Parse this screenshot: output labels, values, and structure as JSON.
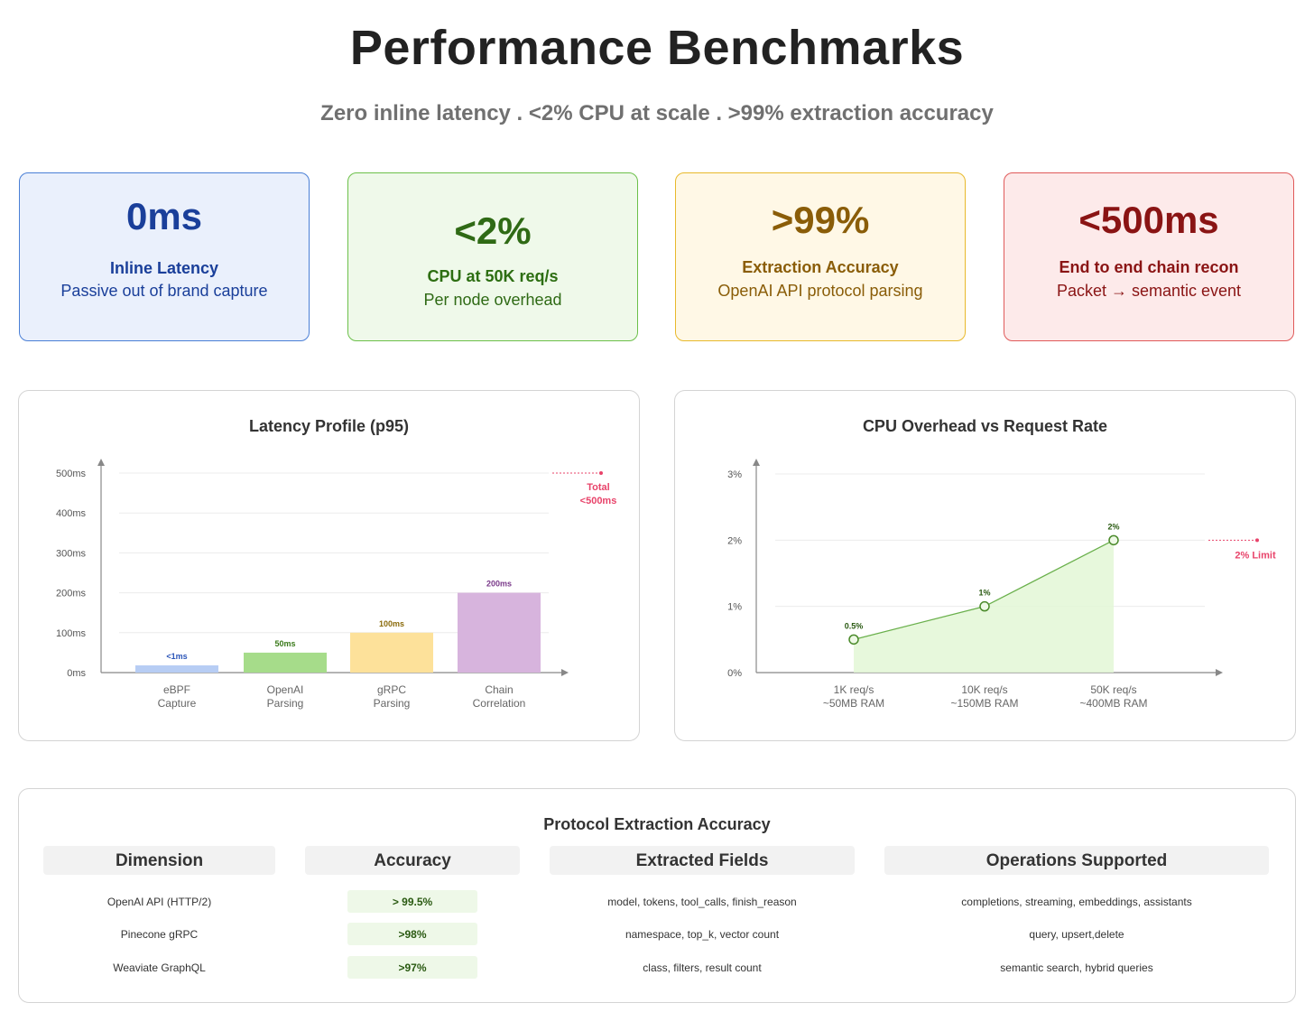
{
  "header": {
    "title": "Performance Benchmarks",
    "subtitle": "Zero inline latency . <2% CPU at scale . >99% extraction accuracy"
  },
  "kpis": [
    {
      "value": "0ms",
      "label": "Inline Latency",
      "desc": "Passive out of brand capture"
    },
    {
      "value": "<2%",
      "label": "CPU at 50K req/s",
      "desc": "Per node overhead"
    },
    {
      "value": ">99%",
      "label": "Extraction Accuracy",
      "desc": "OpenAI API protocol parsing"
    },
    {
      "value": "<500ms",
      "label": "End to end chain recon",
      "desc": "Packet → semantic event"
    }
  ],
  "chart_data": [
    {
      "type": "bar",
      "title": "Latency Profile (p95)",
      "categories": [
        "eBPF\nCapture",
        "OpenAI\nParsing",
        "gRPC\nParsing",
        "Chain\nCorrelation"
      ],
      "values": [
        1,
        50,
        100,
        200
      ],
      "data_labels": [
        "<1ms",
        "50ms",
        "100ms",
        "200ms"
      ],
      "colors": [
        "#b7cdf4",
        "#a6dc8a",
        "#fde19a",
        "#d7b4dd"
      ],
      "label_colors": [
        "#2b55b8",
        "#3a7a1a",
        "#8a6a0a",
        "#7a3a8a"
      ],
      "y_ticks": [
        "0ms",
        "100ms",
        "200ms",
        "300ms",
        "400ms",
        "500ms"
      ],
      "ylim": [
        0,
        500
      ],
      "annotation": {
        "text_line1": "Total",
        "text_line2": "<500ms",
        "value": 500,
        "color": "#e8436a"
      },
      "grid": true
    },
    {
      "type": "line",
      "title": "CPU Overhead vs Request Rate",
      "x": [
        "1K req/s\n~50MB RAM",
        "10K req/s\n~150MB RAM",
        "50K req/s\n~400MB RAM"
      ],
      "values": [
        0.5,
        1,
        2
      ],
      "data_labels": [
        "0.5%",
        "1%",
        "2%"
      ],
      "y_ticks": [
        "0%",
        "1%",
        "2%",
        "3%"
      ],
      "ylim": [
        0,
        3
      ],
      "limit": {
        "text": "2% Limit",
        "value": 2,
        "color": "#e8436a"
      },
      "line_color": "#6ab04c",
      "fill_color": "#e3f7d6",
      "grid": true
    }
  ],
  "accuracy_table": {
    "title": "Protocol Extraction Accuracy",
    "headers": [
      "Dimension",
      "Accuracy",
      "Extracted Fields",
      "Operations Supported"
    ],
    "rows": [
      {
        "dimension": "OpenAI API (HTTP/2)",
        "accuracy": "> 99.5%",
        "fields": "model, tokens, tool_calls, finish_reason",
        "ops": "completions, streaming, embeddings, assistants"
      },
      {
        "dimension": "Pinecone gRPC",
        "accuracy": ">98%",
        "fields": "namespace, top_k, vector count",
        "ops": "query, upsert,delete"
      },
      {
        "dimension": "Weaviate GraphQL",
        "accuracy": ">97%",
        "fields": "class, filters, result count",
        "ops": "semantic search, hybrid queries"
      }
    ]
  }
}
